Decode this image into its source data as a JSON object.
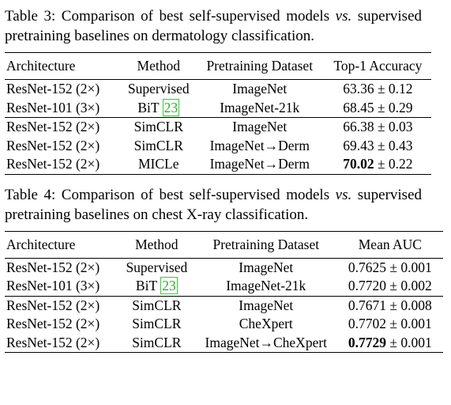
{
  "tables": [
    {
      "caption": {
        "label": "Table 3:",
        "before": "Comparison of best self-supervised models",
        "emph": "vs.",
        "after": "supervised pretraining baselines on dermatology classification."
      },
      "header": [
        "Architecture",
        "Method",
        "Pretraining Dataset",
        "Top-1 Accuracy"
      ],
      "groups": [
        [
          {
            "cells": [
              "ResNet-152 (2×)",
              "Supervised",
              "ImageNet",
              "63.36",
              "± 0.12"
            ]
          },
          {
            "cells": [
              "ResNet-101 (3×)",
              "BiT",
              "ImageNet-21k",
              "68.45",
              "± 0.29"
            ],
            "citation": "23"
          }
        ],
        [
          {
            "cells": [
              "ResNet-152 (2×)",
              "SimCLR",
              "ImageNet",
              "66.38",
              "± 0.03"
            ]
          },
          {
            "cells": [
              "ResNet-152 (2×)",
              "SimCLR",
              "ImageNet→Derm",
              "69.43",
              "± 0.43"
            ]
          },
          {
            "cells": [
              "ResNet-152 (2×)",
              "MICLe",
              "ImageNet→Derm",
              "70.02",
              "± 0.22"
            ],
            "bold": true
          }
        ]
      ]
    },
    {
      "caption": {
        "label": "Table 4:",
        "before": "Comparison of best self-supervised models",
        "emph": "vs.",
        "after": "supervised pretraining baselines on chest X-ray classification."
      },
      "header": [
        "Architecture",
        "Method",
        "Pretraining Dataset",
        "Mean AUC"
      ],
      "groups": [
        [
          {
            "cells": [
              "ResNet-152 (2×)",
              "Supervised",
              "ImageNet",
              "0.7625",
              "± 0.001"
            ]
          },
          {
            "cells": [
              "ResNet-101 (3×)",
              "BiT",
              "ImageNet-21k",
              "0.7720",
              "± 0.002"
            ],
            "citation": "23"
          }
        ],
        [
          {
            "cells": [
              "ResNet-152 (2×)",
              "SimCLR",
              "ImageNet",
              "0.7671",
              "± 0.008"
            ]
          },
          {
            "cells": [
              "ResNet-152 (2×)",
              "SimCLR",
              "CheXpert",
              "0.7702",
              "± 0.001"
            ]
          },
          {
            "cells": [
              "ResNet-152 (2×)",
              "SimCLR",
              "ImageNet→CheXpert",
              "0.7729",
              "± 0.001"
            ],
            "bold": true
          }
        ]
      ]
    }
  ]
}
